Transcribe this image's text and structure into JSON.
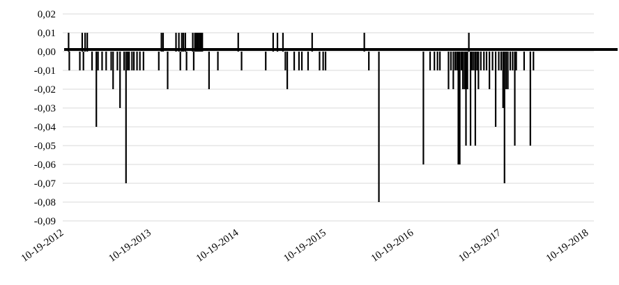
{
  "chart_data": {
    "type": "bar",
    "xlabel": "",
    "ylabel": "",
    "title": "",
    "grid": true,
    "legend": "none",
    "ylim": [
      -0.09,
      0.02
    ],
    "yticks": [
      "0,02",
      "0,01",
      "0,00",
      "-0,01",
      "-0,02",
      "-0,03",
      "-0,04",
      "-0,05",
      "-0,06",
      "-0,07",
      "-0,08",
      "-0,09"
    ],
    "xlim": [
      "2012-10-19",
      "2018-10-19"
    ],
    "xticks": [
      "10-19-2012",
      "10-19-2013",
      "10-19-2014",
      "10-19-2015",
      "10-19-2016",
      "10-19-2017",
      "10-19-2018"
    ],
    "bar_color": "#000000",
    "grid_color": "#d9d9d9",
    "series": [
      {
        "values": [
          [
            "2012-10-26",
            0.01
          ],
          [
            "2012-10-29",
            -0.01
          ],
          [
            "2012-12-22",
            0.01
          ],
          [
            "2012-12-12",
            -0.01
          ],
          [
            "2012-12-27",
            -0.01
          ],
          [
            "2013-01-03",
            0.01
          ],
          [
            "2013-01-12",
            0.01
          ],
          [
            "2013-02-01",
            -0.01
          ],
          [
            "2013-02-19",
            -0.04
          ],
          [
            "2013-02-26",
            -0.01
          ],
          [
            "2013-03-15",
            -0.01
          ],
          [
            "2013-04-01",
            -0.01
          ],
          [
            "2013-04-22",
            -0.01
          ],
          [
            "2013-04-30",
            -0.02
          ],
          [
            "2013-05-18",
            -0.01
          ],
          [
            "2013-05-29",
            -0.03
          ],
          [
            "2013-06-15",
            -0.01
          ],
          [
            "2013-06-23",
            -0.07
          ],
          [
            "2013-06-30",
            -0.01
          ],
          [
            "2013-07-06",
            -0.01
          ],
          [
            "2013-07-18",
            -0.01
          ],
          [
            "2013-07-26",
            -0.01
          ],
          [
            "2013-08-08",
            -0.01
          ],
          [
            "2013-08-20",
            -0.01
          ],
          [
            "2013-09-04",
            -0.01
          ],
          [
            "2013-11-07",
            -0.01
          ],
          [
            "2013-11-18",
            0.01
          ],
          [
            "2013-11-25",
            0.01
          ],
          [
            "2013-12-14",
            -0.02
          ],
          [
            "2014-01-18",
            0.01
          ],
          [
            "2014-01-30",
            0.01
          ],
          [
            "2014-02-05",
            -0.01
          ],
          [
            "2014-02-11",
            0.01
          ],
          [
            "2014-02-18",
            0.01
          ],
          [
            "2014-02-26",
            0.01
          ],
          [
            "2014-03-03",
            -0.01
          ],
          [
            "2014-03-29",
            0.01
          ],
          [
            "2014-04-02",
            -0.01
          ],
          [
            "2014-04-07",
            0.01
          ],
          [
            "2014-04-12",
            0.01
          ],
          [
            "2014-04-18",
            0.01
          ],
          [
            "2014-04-22",
            0.01
          ],
          [
            "2014-04-28",
            0.01
          ],
          [
            "2014-05-03",
            0.01
          ],
          [
            "2014-05-08",
            0.01
          ],
          [
            "2014-06-05",
            -0.02
          ],
          [
            "2014-07-12",
            -0.01
          ],
          [
            "2014-10-05",
            0.01
          ],
          [
            "2014-10-19",
            -0.01
          ],
          [
            "2015-01-28",
            -0.01
          ],
          [
            "2015-02-28",
            0.01
          ],
          [
            "2015-03-18",
            0.01
          ],
          [
            "2015-04-10",
            0.01
          ],
          [
            "2015-04-20",
            -0.01
          ],
          [
            "2015-04-28",
            -0.02
          ],
          [
            "2015-05-27",
            -0.01
          ],
          [
            "2015-06-16",
            -0.01
          ],
          [
            "2015-06-28",
            -0.01
          ],
          [
            "2015-07-24",
            -0.01
          ],
          [
            "2015-08-10",
            0.01
          ],
          [
            "2015-09-10",
            -0.01
          ],
          [
            "2015-09-25",
            -0.01
          ],
          [
            "2015-10-05",
            -0.01
          ],
          [
            "2016-03-15",
            0.01
          ],
          [
            "2016-04-03",
            -0.01
          ],
          [
            "2016-05-15",
            -0.08
          ],
          [
            "2016-11-17",
            -0.06
          ],
          [
            "2016-12-15",
            -0.01
          ],
          [
            "2017-01-02",
            -0.01
          ],
          [
            "2017-01-15",
            -0.01
          ],
          [
            "2017-01-25",
            -0.01
          ],
          [
            "2017-03-02",
            -0.02
          ],
          [
            "2017-03-12",
            -0.01
          ],
          [
            "2017-03-22",
            -0.02
          ],
          [
            "2017-03-30",
            -0.01
          ],
          [
            "2017-04-06",
            -0.01
          ],
          [
            "2017-04-12",
            -0.06
          ],
          [
            "2017-04-18",
            -0.06
          ],
          [
            "2017-04-25",
            -0.01
          ],
          [
            "2017-05-01",
            -0.02
          ],
          [
            "2017-05-08",
            -0.02
          ],
          [
            "2017-05-14",
            -0.05
          ],
          [
            "2017-05-20",
            -0.02
          ],
          [
            "2017-05-26",
            0.01
          ],
          [
            "2017-06-02",
            -0.05
          ],
          [
            "2017-06-08",
            -0.01
          ],
          [
            "2017-06-15",
            -0.01
          ],
          [
            "2017-06-22",
            -0.05
          ],
          [
            "2017-06-29",
            -0.01
          ],
          [
            "2017-07-05",
            -0.02
          ],
          [
            "2017-07-15",
            -0.01
          ],
          [
            "2017-07-28",
            -0.01
          ],
          [
            "2017-08-08",
            -0.01
          ],
          [
            "2017-08-20",
            -0.02
          ],
          [
            "2017-09-02",
            -0.01
          ],
          [
            "2017-09-15",
            -0.04
          ],
          [
            "2017-09-28",
            -0.01
          ],
          [
            "2017-10-08",
            -0.01
          ],
          [
            "2017-10-16",
            -0.03
          ],
          [
            "2017-10-22",
            -0.07
          ],
          [
            "2017-10-29",
            -0.02
          ],
          [
            "2017-11-05",
            -0.02
          ],
          [
            "2017-11-15",
            -0.01
          ],
          [
            "2017-11-25",
            -0.01
          ],
          [
            "2017-12-04",
            -0.05
          ],
          [
            "2017-12-10",
            -0.01
          ],
          [
            "2018-01-12",
            -0.01
          ],
          [
            "2018-02-07",
            -0.05
          ],
          [
            "2018-02-20",
            -0.01
          ]
        ]
      }
    ]
  }
}
